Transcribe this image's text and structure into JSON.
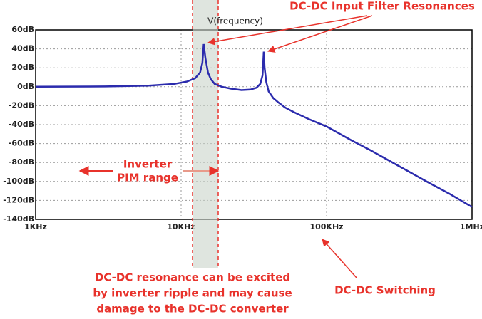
{
  "chart_data": {
    "type": "line",
    "trace_label": "V(frequency)",
    "x": [
      1000,
      3000,
      6000,
      9000,
      11000,
      12500,
      13500,
      14000,
      14300,
      14700,
      15300,
      16000,
      17000,
      19000,
      22000,
      26000,
      30000,
      33000,
      35000,
      36300,
      37000,
      37500,
      38500,
      40000,
      43000,
      47000,
      52000,
      60000,
      75000,
      100000,
      150000,
      200000,
      316000,
      500000,
      700000,
      1000000
    ],
    "series": [
      {
        "name": "V(frequency)",
        "color": "#2b2bad",
        "values": [
          0,
          0.3,
          1.2,
          3,
          5.5,
          9,
          15,
          25,
          45,
          30,
          15,
          8,
          3,
          0,
          -2,
          -3.5,
          -3,
          -1,
          3,
          12,
          37,
          20,
          5,
          -5,
          -12,
          -17,
          -22,
          -27,
          -34,
          -42,
          -57,
          -67,
          -84,
          -101,
          -113,
          -127
        ]
      }
    ],
    "xlim": [
      1000,
      1000000
    ],
    "log_x": true,
    "xticks": [
      {
        "value": 1000,
        "label": "1KHz"
      },
      {
        "value": 10000,
        "label": "10KHz"
      },
      {
        "value": 100000,
        "label": "100KHz"
      },
      {
        "value": 1000000,
        "label": "1MHz"
      }
    ],
    "ylim": [
      -140,
      60
    ],
    "yticks": [
      {
        "value": 60,
        "label": "60dB"
      },
      {
        "value": 40,
        "label": "40dB"
      },
      {
        "value": 20,
        "label": "20dB"
      },
      {
        "value": 0,
        "label": "0dB"
      },
      {
        "value": -20,
        "label": "-20dB"
      },
      {
        "value": -40,
        "label": "-40dB"
      },
      {
        "value": -60,
        "label": "-60dB"
      },
      {
        "value": -80,
        "label": "-80dB"
      },
      {
        "value": -100,
        "label": "-100dB"
      },
      {
        "value": -120,
        "label": "-120dB"
      },
      {
        "value": -140,
        "label": "-140dB"
      }
    ],
    "grid": true,
    "annotations": {
      "resonances": "DC-DC Input Filter Resonances",
      "pim": [
        "Inverter",
        "PIM range"
      ],
      "excited": [
        "DC-DC resonance can be excited",
        "by inverter ripple and may cause",
        "damage to the DC-DC converter"
      ],
      "switching": "DC-DC Switching"
    }
  }
}
